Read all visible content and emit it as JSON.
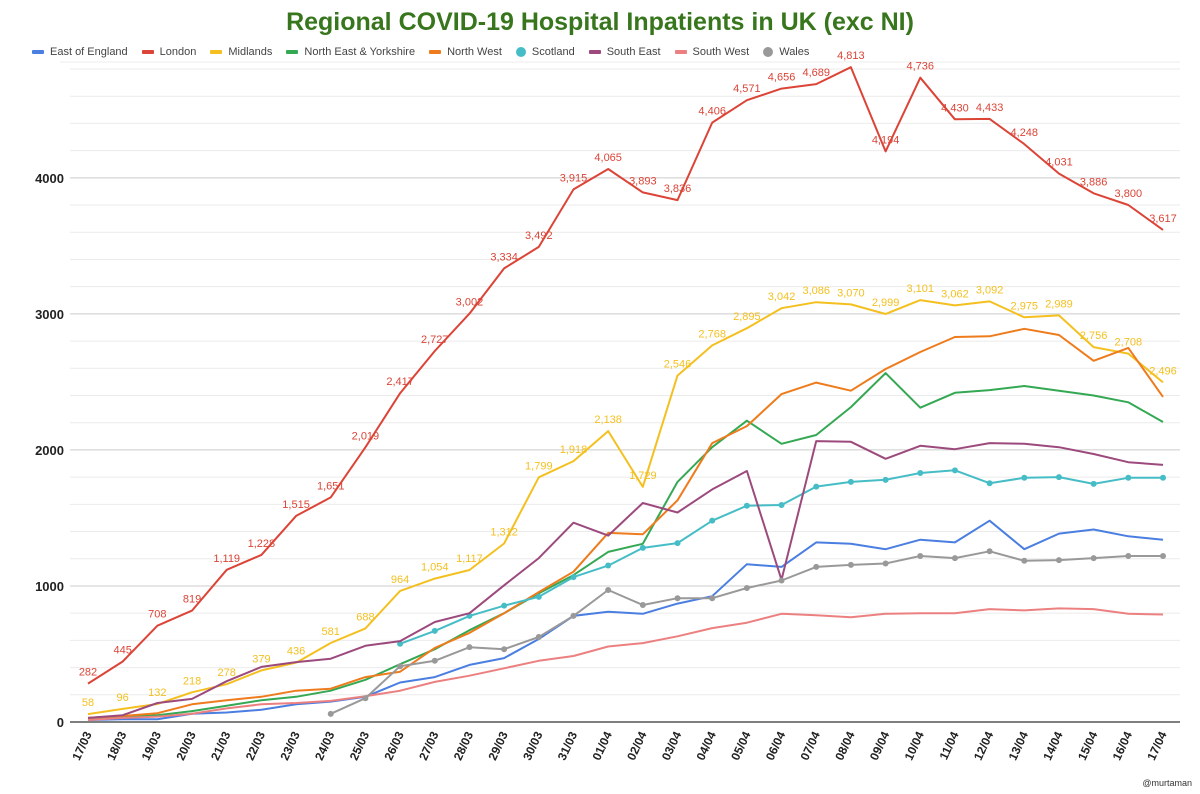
{
  "chart_data": {
    "type": "line",
    "title": "Regional COVID-19 Hospital Inpatients in UK (exc NI)",
    "xlabel": "",
    "ylabel": "",
    "ylim": [
      0,
      4800
    ],
    "yticks": [
      0,
      1000,
      2000,
      3000,
      4000
    ],
    "grid": true,
    "legend_position": "top-left",
    "categories": [
      "17/03",
      "18/03",
      "19/03",
      "20/03",
      "21/03",
      "22/03",
      "23/03",
      "24/03",
      "25/03",
      "26/03",
      "27/03",
      "28/03",
      "29/03",
      "30/03",
      "31/03",
      "01/04",
      "02/04",
      "03/04",
      "04/04",
      "05/04",
      "06/04",
      "07/04",
      "08/04",
      "09/04",
      "10/04",
      "11/04",
      "12/04",
      "13/04",
      "14/04",
      "15/04",
      "16/04",
      "17/04"
    ],
    "series": [
      {
        "name": "East of England",
        "color": "#4a7ee0",
        "markers": false,
        "labels": false,
        "values": [
          15,
          20,
          20,
          60,
          70,
          90,
          130,
          150,
          185,
          290,
          330,
          420,
          470,
          610,
          780,
          810,
          795,
          870,
          925,
          1160,
          1140,
          1320,
          1310,
          1270,
          1340,
          1320,
          1480,
          1270,
          1385,
          1415,
          1365,
          1340
        ]
      },
      {
        "name": "London",
        "color": "#db4437",
        "markers": false,
        "labels": true,
        "values": [
          282,
          445,
          708,
          819,
          1119,
          1228,
          1515,
          1651,
          2019,
          2417,
          2727,
          3002,
          3334,
          3492,
          3915,
          4065,
          3893,
          3836,
          4406,
          4571,
          4656,
          4689,
          4813,
          4194,
          4736,
          4430,
          4433,
          4248,
          4031,
          3886,
          3800,
          3617
        ]
      },
      {
        "name": "Midlands",
        "color": "#f4c020",
        "markers": false,
        "labels": true,
        "values": [
          58,
          96,
          132,
          218,
          278,
          379,
          436,
          581,
          688,
          964,
          1054,
          1117,
          1312,
          1799,
          1918,
          2138,
          1729,
          2546,
          2768,
          2895,
          3042,
          3086,
          3070,
          2999,
          3101,
          3062,
          3092,
          2975,
          2989,
          2756,
          2708,
          2496
        ]
      },
      {
        "name": "North East & Yorkshire",
        "color": "#34a853",
        "markers": false,
        "labels": false,
        "values": [
          20,
          35,
          50,
          80,
          120,
          160,
          185,
          230,
          310,
          425,
          535,
          675,
          800,
          945,
          1080,
          1250,
          1310,
          1765,
          2020,
          2215,
          2045,
          2110,
          2315,
          2565,
          2310,
          2420,
          2440,
          2470,
          2435,
          2400,
          2350,
          2205
        ]
      },
      {
        "name": "North West",
        "color": "#ee7b1c",
        "markers": false,
        "labels": false,
        "values": [
          30,
          45,
          65,
          130,
          160,
          185,
          230,
          245,
          330,
          370,
          545,
          655,
          800,
          955,
          1105,
          1390,
          1380,
          1630,
          2050,
          2175,
          2410,
          2495,
          2435,
          2595,
          2720,
          2830,
          2835,
          2890,
          2845,
          2655,
          2750,
          2390
        ]
      },
      {
        "name": "Scotland",
        "color": "#46bdc6",
        "markers": true,
        "labels": false,
        "values": [
          null,
          null,
          null,
          null,
          null,
          null,
          null,
          null,
          null,
          575,
          670,
          780,
          855,
          920,
          1065,
          1150,
          1280,
          1315,
          1480,
          1590,
          1595,
          1730,
          1765,
          1780,
          1830,
          1850,
          1755,
          1795,
          1800,
          1750,
          1795,
          1795
        ]
      },
      {
        "name": "South East",
        "color": "#9c4a7d",
        "markers": false,
        "labels": false,
        "values": [
          30,
          50,
          140,
          170,
          300,
          405,
          440,
          465,
          560,
          595,
          735,
          800,
          1005,
          1205,
          1465,
          1370,
          1610,
          1540,
          1710,
          1845,
          1045,
          2065,
          2060,
          1935,
          2030,
          2005,
          2050,
          2045,
          2020,
          1970,
          1910,
          1890
        ]
      },
      {
        "name": "South West",
        "color": "#ec8080",
        "markers": false,
        "labels": false,
        "values": [
          15,
          30,
          40,
          60,
          100,
          130,
          140,
          155,
          190,
          230,
          295,
          340,
          395,
          450,
          485,
          555,
          580,
          630,
          690,
          730,
          795,
          785,
          770,
          795,
          800,
          800,
          830,
          820,
          835,
          830,
          795,
          790
        ]
      },
      {
        "name": "Wales",
        "color": "#999999",
        "markers": true,
        "labels": false,
        "values": [
          null,
          null,
          null,
          null,
          null,
          null,
          null,
          60,
          175,
          410,
          450,
          550,
          535,
          625,
          780,
          970,
          860,
          910,
          910,
          985,
          1040,
          1140,
          1155,
          1165,
          1220,
          1205,
          1255,
          1185,
          1190,
          1205,
          1220,
          1220
        ]
      }
    ]
  },
  "credit": "@murtaman"
}
